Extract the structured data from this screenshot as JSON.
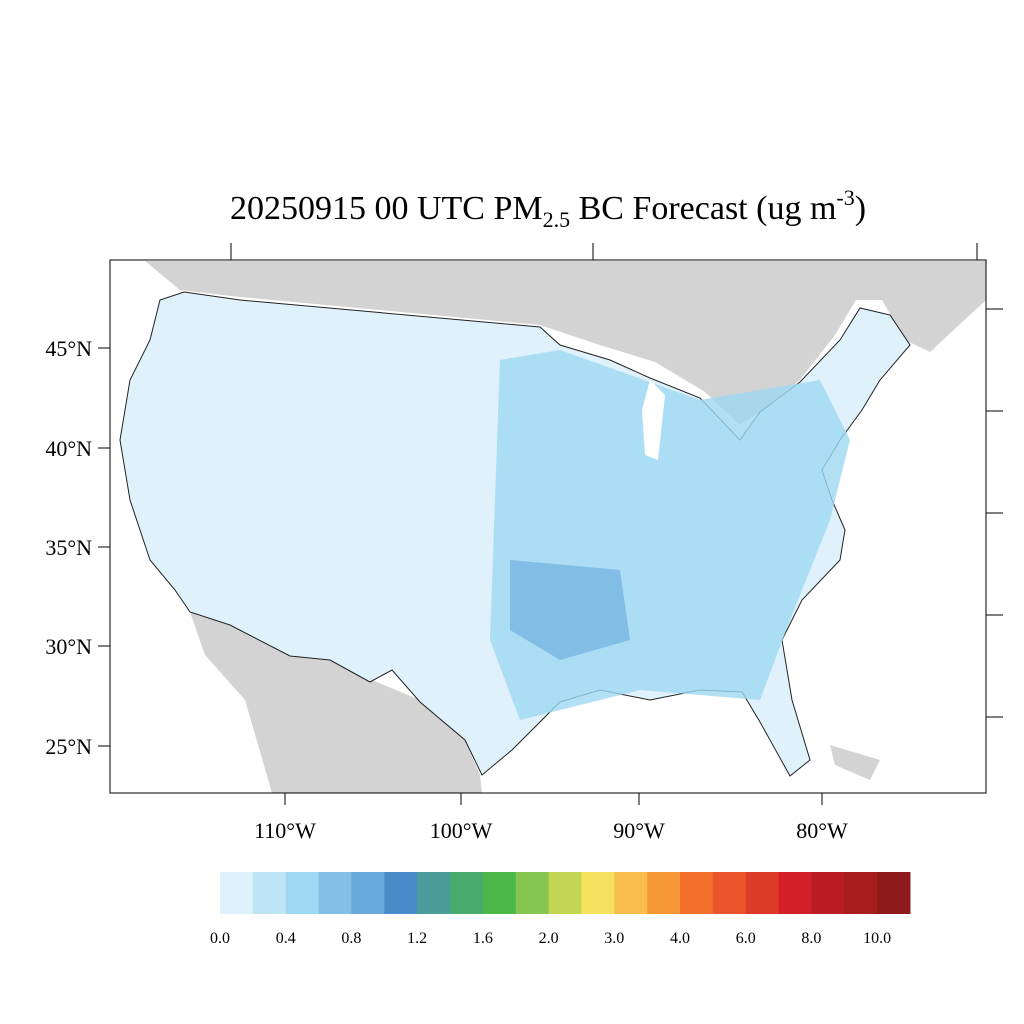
{
  "title": {
    "main": "20250915 00 UTC PM",
    "sub": "2.5",
    "rest": " BC Forecast (ug m",
    "sup": "-3",
    "close": ")"
  },
  "lat_labels": [
    "45°N",
    "40°N",
    "35°N",
    "30°N",
    "25°N"
  ],
  "lon_labels": [
    "110°W",
    "100°W",
    "90°W",
    "80°W"
  ],
  "colorbar": {
    "colors": [
      "#dff1fa",
      "#bfe4f6",
      "#9ed8f3",
      "#85c0e6",
      "#68a8da",
      "#4a8cca",
      "#4b9d9c",
      "#4aaa6e",
      "#4cb84a",
      "#86c650",
      "#c3d654",
      "#f6e25e",
      "#f8bd4b",
      "#f79838",
      "#f36f2a",
      "#e9542a",
      "#dd3a29",
      "#d21f28",
      "#b91c24",
      "#a81c20",
      "#8e1a1c"
    ],
    "labels": [
      "0.0",
      "0.4",
      "0.8",
      "1.2",
      "1.6",
      "2.0",
      "3.0",
      "4.0",
      "6.0",
      "8.0",
      "10.0"
    ]
  }
}
